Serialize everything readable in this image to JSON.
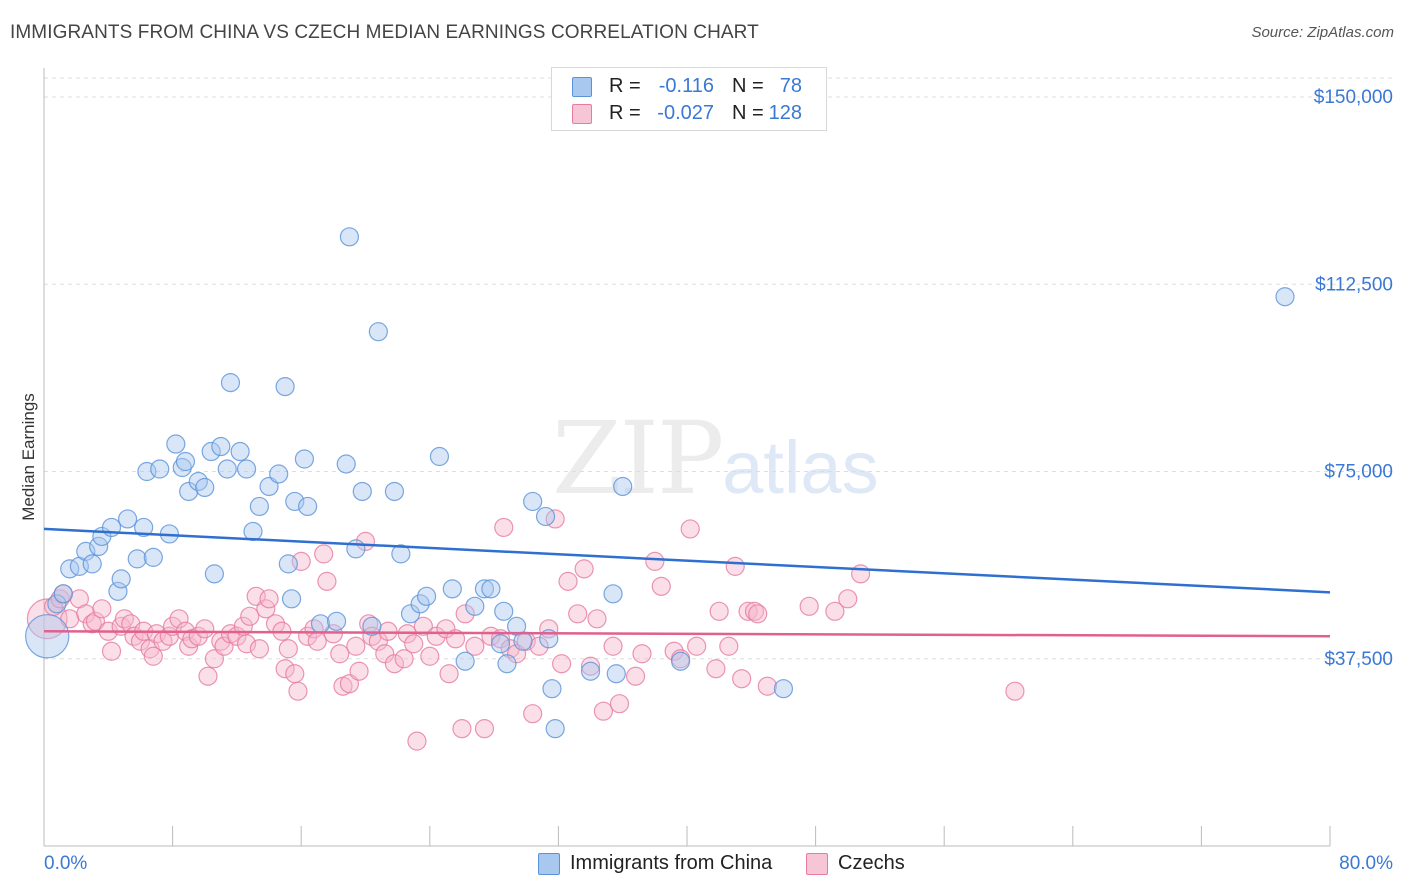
{
  "title": "IMMIGRANTS FROM CHINA VS CZECH MEDIAN EARNINGS CORRELATION CHART",
  "source": "Source: ZipAtlas.com",
  "legend": {
    "series1": {
      "r_label": "R =",
      "r_value": "-0.116",
      "n_label": "N =",
      "n_value": "78"
    },
    "series2": {
      "r_label": "R =",
      "r_value": "-0.027",
      "n_label": "N =",
      "n_value": "128"
    }
  },
  "bottom_legend": {
    "series1": "Immigrants from China",
    "series2": "Czechs"
  },
  "colors": {
    "china_fill": "#a8c8f0",
    "china_stroke": "#5a92d8",
    "china_line": "#2f6fd0",
    "czech_fill": "#f6b8cc",
    "czech_stroke": "#e67aa0",
    "czech_line": "#e0608e",
    "tick_label": "#3a78d4"
  },
  "chart_data": {
    "type": "scatter",
    "title": "IMMIGRANTS FROM CHINA VS CZECH MEDIAN EARNINGS CORRELATION CHART",
    "ylabel": "Median Earnings",
    "xlabel": "",
    "xlim": [
      0,
      80
    ],
    "ylim": [
      0,
      150000
    ],
    "x_tick_labels": [
      "0.0%",
      "80.0%"
    ],
    "y_ticks": [
      37500,
      75000,
      112500,
      150000
    ],
    "y_tick_labels": [
      "$37,500",
      "$75,000",
      "$112,500",
      "$150,000"
    ],
    "grid": "horizontal dashed",
    "legend_position": "top-center",
    "series": [
      {
        "name": "Immigrants from China",
        "r": -0.116,
        "n": 78,
        "trend": [
          [
            0,
            63500
          ],
          [
            80,
            50800
          ]
        ],
        "points": [
          [
            0.2,
            42000,
            2.4
          ],
          [
            0.8,
            48500,
            1
          ],
          [
            1.2,
            50500,
            1
          ],
          [
            1.6,
            55500,
            1
          ],
          [
            2.2,
            56000,
            1
          ],
          [
            2.6,
            59000,
            1
          ],
          [
            3.0,
            56500,
            1
          ],
          [
            3.4,
            60000,
            1
          ],
          [
            3.6,
            62000,
            1
          ],
          [
            4.2,
            63800,
            1
          ],
          [
            4.6,
            51000,
            1
          ],
          [
            4.8,
            53500,
            1
          ],
          [
            5.2,
            65500,
            1
          ],
          [
            5.8,
            57500,
            1
          ],
          [
            6.2,
            63800,
            1
          ],
          [
            6.4,
            75000,
            1
          ],
          [
            6.8,
            57800,
            1
          ],
          [
            7.2,
            75500,
            1
          ],
          [
            7.8,
            62500,
            1
          ],
          [
            8.2,
            80500,
            1
          ],
          [
            8.6,
            75800,
            1
          ],
          [
            8.8,
            77000,
            1
          ],
          [
            9.0,
            71000,
            1
          ],
          [
            9.6,
            73000,
            1
          ],
          [
            10.0,
            71800,
            1
          ],
          [
            10.4,
            79000,
            1
          ],
          [
            10.6,
            54500,
            1
          ],
          [
            11.0,
            80000,
            1
          ],
          [
            11.4,
            75500,
            1
          ],
          [
            11.6,
            92800,
            1
          ],
          [
            12.2,
            79000,
            1
          ],
          [
            12.6,
            75500,
            1
          ],
          [
            13.0,
            63000,
            1
          ],
          [
            13.4,
            68000,
            1
          ],
          [
            14.0,
            72000,
            1
          ],
          [
            14.6,
            74500,
            1
          ],
          [
            15.2,
            56500,
            1
          ],
          [
            15.4,
            49500,
            1
          ],
          [
            15.6,
            69000,
            1
          ],
          [
            16.4,
            68000,
            1
          ],
          [
            15.0,
            92000,
            1
          ],
          [
            16.2,
            77500,
            1
          ],
          [
            17.2,
            44500,
            1
          ],
          [
            18.2,
            45000,
            1
          ],
          [
            18.8,
            76500,
            1
          ],
          [
            19.0,
            122000,
            1
          ],
          [
            19.4,
            59500,
            1
          ],
          [
            19.8,
            71000,
            1
          ],
          [
            20.4,
            44000,
            1
          ],
          [
            20.8,
            103000,
            1
          ],
          [
            21.8,
            71000,
            1
          ],
          [
            22.2,
            58500,
            1
          ],
          [
            22.8,
            46500,
            1
          ],
          [
            23.4,
            48500,
            1
          ],
          [
            23.8,
            50000,
            1
          ],
          [
            24.6,
            78000,
            1
          ],
          [
            25.4,
            51500,
            1
          ],
          [
            26.2,
            37000,
            1
          ],
          [
            26.8,
            48000,
            1
          ],
          [
            27.4,
            51500,
            1
          ],
          [
            27.8,
            51500,
            1
          ],
          [
            28.4,
            40500,
            1
          ],
          [
            28.6,
            47000,
            1
          ],
          [
            28.8,
            36500,
            1
          ],
          [
            29.4,
            44000,
            1
          ],
          [
            29.8,
            41000,
            1
          ],
          [
            30.4,
            69000,
            1
          ],
          [
            31.2,
            66000,
            1
          ],
          [
            31.4,
            41500,
            1
          ],
          [
            31.6,
            31500,
            1
          ],
          [
            31.8,
            23500,
            1
          ],
          [
            34.0,
            35000,
            1
          ],
          [
            35.4,
            50500,
            1
          ],
          [
            35.6,
            34500,
            1
          ],
          [
            36.0,
            72000,
            1
          ],
          [
            39.6,
            37000,
            1
          ],
          [
            46.0,
            31500,
            1
          ],
          [
            77.2,
            110000,
            1
          ]
        ]
      },
      {
        "name": "Czechs",
        "r": -0.027,
        "n": 128,
        "trend": [
          [
            0,
            43000
          ],
          [
            80,
            42000
          ]
        ],
        "points": [
          [
            0.2,
            45500,
            2.2
          ],
          [
            0.6,
            48000,
            1
          ],
          [
            1.0,
            49500,
            1
          ],
          [
            1.2,
            50500,
            1
          ],
          [
            1.6,
            45500,
            1
          ],
          [
            2.2,
            49500,
            1
          ],
          [
            2.6,
            46500,
            1
          ],
          [
            3.0,
            44500,
            1
          ],
          [
            3.2,
            45000,
            1
          ],
          [
            3.6,
            47500,
            1
          ],
          [
            4.0,
            43000,
            1
          ],
          [
            4.2,
            39000,
            1
          ],
          [
            4.8,
            44000,
            1
          ],
          [
            5.0,
            45500,
            1
          ],
          [
            5.4,
            44500,
            1
          ],
          [
            5.6,
            42000,
            1
          ],
          [
            6.0,
            41000,
            1
          ],
          [
            6.2,
            43000,
            1
          ],
          [
            6.6,
            39500,
            1
          ],
          [
            6.8,
            38000,
            1
          ],
          [
            7.0,
            42500,
            1
          ],
          [
            7.4,
            41000,
            1
          ],
          [
            7.8,
            42000,
            1
          ],
          [
            8.0,
            44000,
            1
          ],
          [
            8.4,
            45500,
            1
          ],
          [
            8.8,
            43000,
            1
          ],
          [
            9.0,
            40000,
            1
          ],
          [
            9.2,
            41500,
            1
          ],
          [
            9.6,
            42000,
            1
          ],
          [
            10.0,
            43500,
            1
          ],
          [
            10.2,
            34000,
            1
          ],
          [
            10.6,
            37500,
            1
          ],
          [
            11.0,
            41000,
            1
          ],
          [
            11.2,
            40000,
            1
          ],
          [
            11.6,
            42500,
            1
          ],
          [
            12.0,
            42000,
            1
          ],
          [
            12.4,
            44000,
            1
          ],
          [
            12.6,
            40500,
            1
          ],
          [
            12.8,
            46000,
            1
          ],
          [
            13.2,
            50000,
            1
          ],
          [
            13.4,
            39500,
            1
          ],
          [
            13.8,
            47500,
            1
          ],
          [
            14.0,
            49500,
            1
          ],
          [
            14.4,
            44500,
            1
          ],
          [
            14.8,
            43000,
            1
          ],
          [
            15.0,
            35500,
            1
          ],
          [
            15.2,
            39500,
            1
          ],
          [
            15.6,
            34500,
            1
          ],
          [
            15.8,
            31000,
            1
          ],
          [
            16.0,
            57000,
            1
          ],
          [
            16.4,
            42000,
            1
          ],
          [
            16.8,
            43500,
            1
          ],
          [
            17.0,
            41000,
            1
          ],
          [
            17.4,
            58500,
            1
          ],
          [
            17.6,
            53000,
            1
          ],
          [
            18.0,
            42500,
            1
          ],
          [
            18.4,
            38500,
            1
          ],
          [
            18.6,
            32000,
            1
          ],
          [
            19.0,
            32500,
            1
          ],
          [
            19.4,
            40000,
            1
          ],
          [
            19.6,
            35000,
            1
          ],
          [
            20.0,
            61000,
            1
          ],
          [
            20.2,
            44500,
            1
          ],
          [
            20.4,
            42000,
            1
          ],
          [
            20.8,
            41000,
            1
          ],
          [
            21.2,
            38500,
            1
          ],
          [
            21.4,
            43000,
            1
          ],
          [
            21.8,
            36500,
            1
          ],
          [
            22.4,
            37500,
            1
          ],
          [
            22.6,
            42500,
            1
          ],
          [
            23.0,
            40500,
            1
          ],
          [
            23.2,
            21000,
            1
          ],
          [
            23.6,
            44000,
            1
          ],
          [
            24.0,
            38000,
            1
          ],
          [
            24.4,
            42000,
            1
          ],
          [
            25.0,
            43500,
            1
          ],
          [
            25.2,
            34500,
            1
          ],
          [
            25.6,
            41500,
            1
          ],
          [
            26.0,
            23500,
            1
          ],
          [
            26.2,
            46500,
            1
          ],
          [
            26.8,
            40000,
            1
          ],
          [
            27.4,
            23500,
            1
          ],
          [
            27.8,
            42000,
            1
          ],
          [
            28.4,
            41500,
            1
          ],
          [
            28.6,
            63800,
            1
          ],
          [
            29.0,
            39500,
            1
          ],
          [
            29.4,
            38500,
            1
          ],
          [
            30.0,
            41000,
            1
          ],
          [
            30.4,
            26500,
            1
          ],
          [
            30.8,
            40000,
            1
          ],
          [
            31.4,
            43500,
            1
          ],
          [
            31.8,
            65500,
            1
          ],
          [
            32.2,
            36500,
            1
          ],
          [
            32.6,
            53000,
            1
          ],
          [
            33.2,
            46500,
            1
          ],
          [
            33.6,
            55500,
            1
          ],
          [
            34.0,
            36000,
            1
          ],
          [
            34.4,
            45500,
            1
          ],
          [
            34.8,
            27000,
            1
          ],
          [
            35.4,
            40000,
            1
          ],
          [
            35.8,
            28500,
            1
          ],
          [
            36.8,
            34000,
            1
          ],
          [
            37.2,
            38500,
            1
          ],
          [
            38.0,
            57000,
            1
          ],
          [
            38.4,
            52000,
            1
          ],
          [
            39.2,
            39000,
            1
          ],
          [
            39.6,
            37500,
            1
          ],
          [
            40.2,
            63500,
            1
          ],
          [
            40.6,
            40000,
            1
          ],
          [
            41.8,
            35500,
            1
          ],
          [
            42.0,
            47000,
            1
          ],
          [
            42.6,
            40000,
            1
          ],
          [
            43.0,
            56000,
            1
          ],
          [
            43.4,
            33500,
            1
          ],
          [
            43.8,
            47000,
            1
          ],
          [
            44.2,
            47000,
            1
          ],
          [
            44.4,
            46500,
            1
          ],
          [
            45.0,
            32000,
            1
          ],
          [
            47.6,
            48000,
            1
          ],
          [
            49.2,
            47000,
            1
          ],
          [
            50.0,
            49500,
            1
          ],
          [
            50.8,
            54500,
            1
          ],
          [
            60.4,
            31000,
            1
          ]
        ]
      }
    ]
  }
}
